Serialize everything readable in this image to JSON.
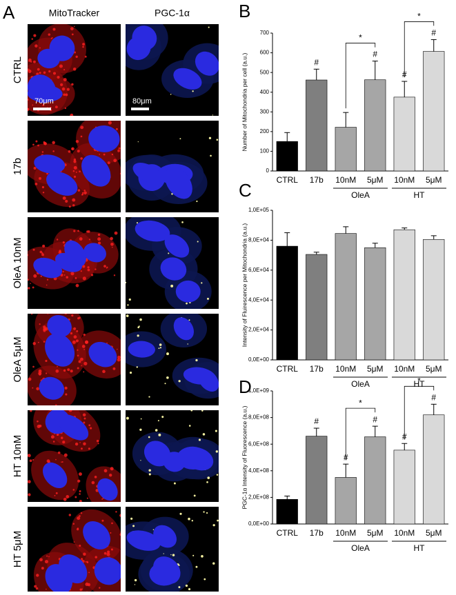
{
  "panel_a": {
    "label": "A",
    "columns": [
      "MitoTracker",
      "PGC-1α"
    ],
    "rows": [
      "CTRL",
      "17b",
      "OleA 10nM",
      "OleA 5μM",
      "HT 10nM",
      "HT 5μM"
    ],
    "scale_bars": [
      "70μm",
      "80μm"
    ]
  },
  "chart_data": [
    {
      "type": "bar",
      "panel_label": "B",
      "y_label": "Number of Mitochondria per cell (a.u.)",
      "categories": [
        "CTRL",
        "17b",
        "10nM",
        "5μM",
        "10nM",
        "5μM"
      ],
      "values": [
        150,
        462,
        222,
        463,
        375,
        607
      ],
      "errors": [
        45,
        55,
        75,
        95,
        80,
        60
      ],
      "colors": [
        "#000000",
        "#7f7f7f",
        "#a6a6a6",
        "#a6a6a6",
        "#d9d9d9",
        "#d9d9d9"
      ],
      "hash_labels": [
        null,
        "#",
        null,
        "#",
        "#",
        "#"
      ],
      "significance": [
        null,
        null,
        null,
        "*",
        null,
        "*"
      ],
      "groups": [
        {
          "label": "OleA",
          "categories": [
            2,
            3
          ]
        },
        {
          "label": "HT",
          "categories": [
            4,
            5
          ]
        }
      ],
      "ylim": [
        0,
        700
      ],
      "yticks": [
        0,
        100,
        200,
        300,
        400,
        500,
        600,
        700
      ]
    },
    {
      "type": "bar",
      "panel_label": "C",
      "y_label": "Intensity of Fluirescence per Mitochondria (a.u.)",
      "categories": [
        "CTRL",
        "17b",
        "10nM",
        "5μM",
        "10nM",
        "5μM"
      ],
      "values": [
        76000,
        70500,
        84500,
        75000,
        87000,
        80500
      ],
      "errors": [
        9000,
        1500,
        4500,
        3000,
        1200,
        2500
      ],
      "colors": [
        "#000000",
        "#7f7f7f",
        "#a6a6a6",
        "#a6a6a6",
        "#d9d9d9",
        "#d9d9d9"
      ],
      "groups": [
        {
          "label": "OleA",
          "categories": [
            2,
            3
          ]
        },
        {
          "label": "HT",
          "categories": [
            4,
            5
          ]
        }
      ],
      "ylim": [
        0,
        100000
      ],
      "yticks": [
        {
          "value": 0,
          "label": "0,0E+00"
        },
        {
          "value": 20000,
          "label": "2,0E+04"
        },
        {
          "value": 40000,
          "label": "4,0E+04"
        },
        {
          "value": 60000,
          "label": "6,0E+04"
        },
        {
          "value": 80000,
          "label": "8,0E+04"
        },
        {
          "value": 100000,
          "label": "1,0E+05"
        }
      ]
    },
    {
      "type": "bar",
      "panel_label": "D",
      "y_label": "PGC-1α Intensity of Fluorescence (a.u.)",
      "categories": [
        "CTRL",
        "17b",
        "10nM",
        "5μM",
        "10nM",
        "5μM"
      ],
      "values": [
        185000000,
        660000000,
        350000000,
        655000000,
        555000000,
        820000000
      ],
      "errors": [
        25000000,
        60000000,
        100000000,
        80000000,
        50000000,
        80000000
      ],
      "colors": [
        "#000000",
        "#7f7f7f",
        "#a6a6a6",
        "#a6a6a6",
        "#d9d9d9",
        "#d9d9d9"
      ],
      "hash_labels": [
        null,
        "#",
        "#",
        "#",
        "#",
        "#"
      ],
      "significance": [
        null,
        null,
        null,
        "*",
        null,
        "*"
      ],
      "groups": [
        {
          "label": "OleA",
          "categories": [
            2,
            3
          ]
        },
        {
          "label": "HT",
          "categories": [
            4,
            5
          ]
        }
      ],
      "ylim": [
        0,
        1000000000
      ],
      "yticks": [
        {
          "value": 0,
          "label": "0,0E+00"
        },
        {
          "value": 200000000,
          "label": "2,0E+08"
        },
        {
          "value": 400000000,
          "label": "4,0E+08"
        },
        {
          "value": 600000000,
          "label": "6,0E+08"
        },
        {
          "value": 800000000,
          "label": "8,0E+08"
        },
        {
          "value": 1000000000,
          "label": "1,0E+09"
        }
      ]
    }
  ]
}
